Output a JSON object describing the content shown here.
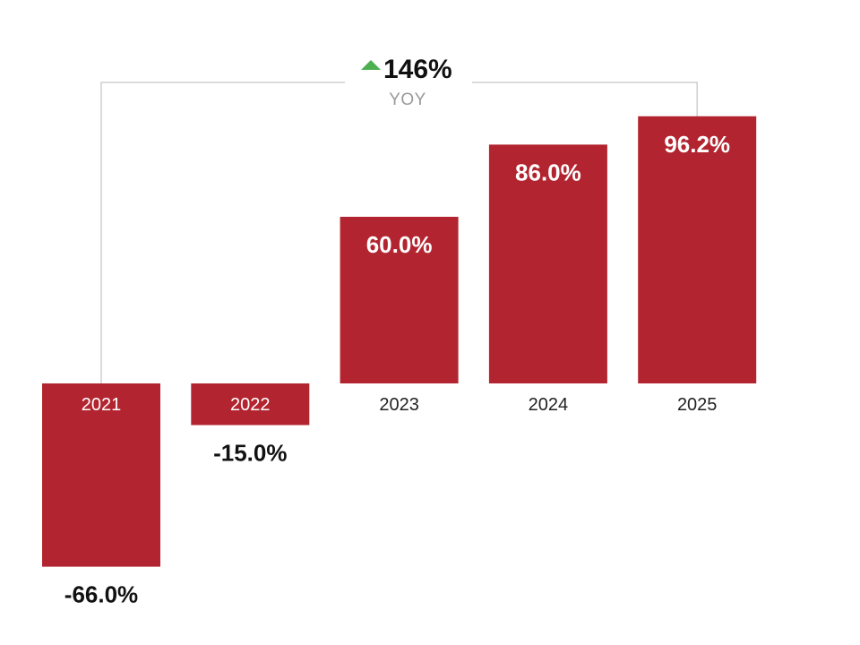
{
  "chart_data": {
    "type": "bar",
    "categories": [
      "2021",
      "2022",
      "2023",
      "2024",
      "2025"
    ],
    "values": [
      -66.0,
      -15.0,
      60.0,
      86.0,
      96.2
    ],
    "value_labels": [
      "-66.0%",
      "-15.0%",
      "60.0%",
      "86.0%",
      "96.2%"
    ],
    "ylim": [
      -70,
      100
    ],
    "grid": false,
    "legend": "none",
    "bar_color": "#b22530",
    "yoy_annotation": {
      "value": "146%",
      "label": "YOY",
      "direction": "up",
      "arrow_color": "#4caf50",
      "from_category": "2021",
      "to_category": "2025"
    }
  }
}
